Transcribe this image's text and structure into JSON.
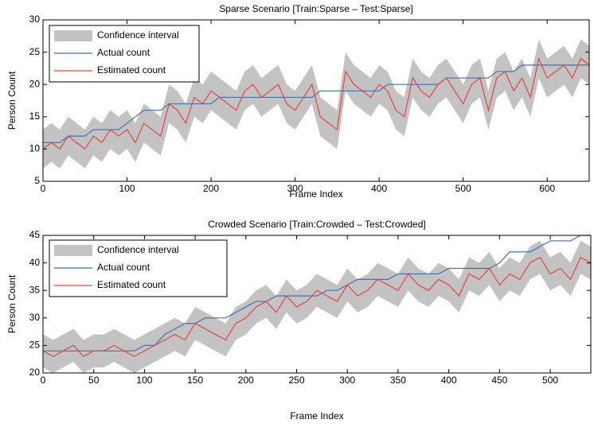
{
  "chart_data": [
    {
      "type": "line",
      "title": "Sparse Scenario [Train:Sparse – Test:Sparse]",
      "xlabel": "Frame Index",
      "ylabel": "Person Count",
      "xlim": [
        0,
        650
      ],
      "ylim": [
        5,
        30
      ],
      "xticks": [
        0,
        100,
        200,
        300,
        400,
        500,
        600
      ],
      "yticks": [
        5,
        10,
        15,
        20,
        25,
        30
      ],
      "legend": "upper left",
      "x": [
        0,
        10,
        20,
        30,
        40,
        50,
        60,
        70,
        80,
        90,
        100,
        110,
        120,
        130,
        140,
        150,
        160,
        170,
        180,
        190,
        200,
        210,
        220,
        230,
        240,
        250,
        260,
        270,
        280,
        290,
        300,
        310,
        320,
        330,
        340,
        350,
        360,
        370,
        380,
        390,
        400,
        410,
        420,
        430,
        440,
        450,
        460,
        470,
        480,
        490,
        500,
        510,
        520,
        530,
        540,
        550,
        560,
        570,
        580,
        590,
        600,
        610,
        620,
        630,
        640,
        650
      ],
      "series": [
        {
          "name": "Confidence interval",
          "color": "#c3c3c3",
          "lower": [
            7,
            8,
            7,
            9,
            8,
            7,
            9,
            8,
            10,
            9,
            10,
            8,
            11,
            10,
            9,
            14,
            13,
            11,
            15,
            14,
            16,
            15,
            14,
            13,
            16,
            17,
            15,
            16,
            17,
            14,
            13,
            15,
            17,
            12,
            11,
            10,
            19,
            17,
            16,
            15,
            17,
            16,
            13,
            12,
            18,
            16,
            15,
            17,
            18,
            16,
            14,
            17,
            18,
            13,
            18,
            19,
            16,
            18,
            15,
            21,
            18,
            19,
            20,
            18,
            21,
            20
          ],
          "upper": [
            13,
            14,
            13,
            15,
            14,
            13,
            15,
            14,
            16,
            15,
            16,
            14,
            17,
            16,
            15,
            20,
            19,
            17,
            21,
            20,
            22,
            21,
            20,
            19,
            22,
            23,
            21,
            22,
            23,
            20,
            19,
            21,
            23,
            18,
            17,
            16,
            25,
            23,
            22,
            21,
            23,
            22,
            19,
            18,
            24,
            22,
            21,
            23,
            24,
            22,
            20,
            23,
            24,
            19,
            24,
            25,
            22,
            24,
            21,
            27,
            24,
            25,
            26,
            24,
            27,
            26
          ]
        },
        {
          "name": "Actual count",
          "color": "#3f72b0",
          "values": [
            11,
            11,
            11,
            12,
            12,
            12,
            13,
            13,
            13,
            13,
            14,
            15,
            16,
            16,
            16,
            17,
            17,
            17,
            17,
            17,
            17,
            18,
            18,
            18,
            18,
            18,
            18,
            18,
            18,
            18,
            18,
            18,
            18,
            19,
            19,
            19,
            19,
            19,
            19,
            19,
            19,
            20,
            20,
            20,
            20,
            20,
            20,
            20,
            21,
            21,
            21,
            21,
            21,
            21,
            22,
            22,
            22,
            23,
            23,
            23,
            23,
            23,
            23,
            23,
            23,
            23
          ]
        },
        {
          "name": "Estimated count",
          "color": "#e5433c",
          "values": [
            10,
            11,
            10,
            12,
            11,
            10,
            12,
            11,
            13,
            12,
            13,
            11,
            14,
            13,
            12,
            17,
            16,
            14,
            18,
            17,
            19,
            18,
            17,
            16,
            19,
            20,
            18,
            19,
            20,
            17,
            16,
            18,
            20,
            15,
            14,
            13,
            22,
            20,
            19,
            18,
            20,
            19,
            16,
            15,
            21,
            19,
            18,
            20,
            21,
            19,
            17,
            20,
            21,
            16,
            21,
            22,
            19,
            21,
            18,
            24,
            21,
            22,
            23,
            21,
            24,
            23
          ]
        }
      ]
    },
    {
      "type": "line",
      "title": "Crowded Scenario [Train:Crowded – Test:Crowded]",
      "xlabel": "Frame Index",
      "ylabel": "Person Count",
      "xlim": [
        0,
        540
      ],
      "ylim": [
        20,
        45
      ],
      "xticks": [
        0,
        50,
        100,
        150,
        200,
        250,
        300,
        350,
        400,
        450,
        500
      ],
      "yticks": [
        20,
        25,
        30,
        35,
        40,
        45
      ],
      "legend": "upper left",
      "x": [
        0,
        10,
        20,
        30,
        40,
        50,
        60,
        70,
        80,
        90,
        100,
        110,
        120,
        130,
        140,
        150,
        160,
        170,
        180,
        190,
        200,
        210,
        220,
        230,
        240,
        250,
        260,
        270,
        280,
        290,
        300,
        310,
        320,
        330,
        340,
        350,
        360,
        370,
        380,
        390,
        400,
        410,
        420,
        430,
        440,
        450,
        460,
        470,
        480,
        490,
        500,
        510,
        520,
        530,
        540
      ],
      "series": [
        {
          "name": "Confidence interval",
          "color": "#c3c3c3",
          "lower": [
            21,
            20,
            21,
            22,
            20,
            21,
            21,
            22,
            21,
            20,
            21,
            22,
            23,
            24,
            23,
            26,
            25,
            24,
            23,
            26,
            27,
            29,
            30,
            28,
            31,
            29,
            30,
            32,
            31,
            30,
            33,
            31,
            32,
            34,
            33,
            32,
            35,
            33,
            32,
            34,
            33,
            31,
            35,
            34,
            36,
            33,
            35,
            34,
            37,
            38,
            35,
            36,
            34,
            38,
            37
          ],
          "upper": [
            27,
            26,
            27,
            28,
            26,
            27,
            27,
            28,
            27,
            26,
            27,
            28,
            29,
            30,
            29,
            32,
            31,
            30,
            29,
            32,
            33,
            35,
            36,
            34,
            37,
            35,
            36,
            38,
            37,
            36,
            39,
            37,
            38,
            40,
            39,
            38,
            41,
            39,
            38,
            40,
            39,
            37,
            41,
            40,
            42,
            39,
            41,
            40,
            43,
            44,
            41,
            42,
            40,
            44,
            43
          ]
        },
        {
          "name": "Actual count",
          "color": "#3f72b0",
          "values": [
            24,
            24,
            24,
            24,
            24,
            24,
            24,
            24,
            24,
            24,
            25,
            25,
            27,
            28,
            29,
            29,
            30,
            30,
            30,
            31,
            32,
            33,
            33,
            34,
            34,
            34,
            34,
            34,
            35,
            35,
            36,
            37,
            37,
            37,
            37,
            38,
            38,
            38,
            38,
            38,
            39,
            39,
            39,
            39,
            39,
            40,
            42,
            42,
            42,
            43,
            44,
            44,
            44,
            45,
            45
          ]
        },
        {
          "name": "Estimated count",
          "color": "#e5433c",
          "values": [
            24,
            23,
            24,
            25,
            23,
            24,
            24,
            25,
            24,
            23,
            24,
            25,
            26,
            27,
            26,
            29,
            28,
            27,
            26,
            29,
            30,
            32,
            33,
            31,
            34,
            32,
            33,
            35,
            34,
            33,
            36,
            34,
            35,
            37,
            36,
            35,
            38,
            36,
            35,
            37,
            36,
            34,
            38,
            37,
            39,
            36,
            38,
            37,
            40,
            41,
            38,
            39,
            37,
            41,
            40
          ]
        }
      ]
    }
  ]
}
